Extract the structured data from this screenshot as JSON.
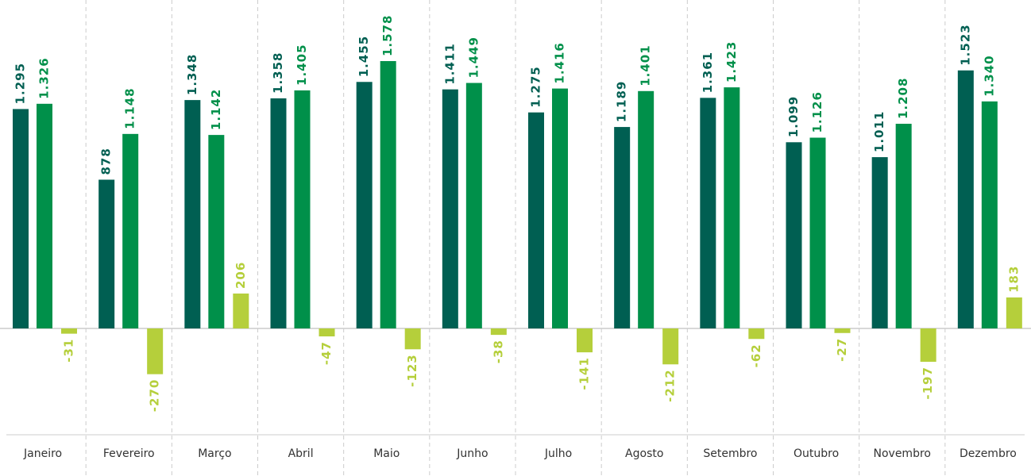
{
  "chart_data": {
    "type": "bar",
    "categories": [
      "Janeiro",
      "Fevereiro",
      "Março",
      "Abril",
      "Maio",
      "Junho",
      "Julho",
      "Agosto",
      "Setembro",
      "Outubro",
      "Novembro",
      "Dezembro"
    ],
    "series": [
      {
        "color": "#005f52",
        "values": [
          1295,
          878,
          1348,
          1358,
          1455,
          1411,
          1275,
          1189,
          1361,
          1099,
          1011,
          1523
        ],
        "value_labels": [
          "1.295",
          "878",
          "1.348",
          "1.358",
          "1.455",
          "1.411",
          "1.275",
          "1.189",
          "1.361",
          "1.099",
          "1.011",
          "1.523"
        ]
      },
      {
        "color": "#00904a",
        "values": [
          1326,
          1148,
          1142,
          1405,
          1578,
          1449,
          1416,
          1401,
          1423,
          1126,
          1208,
          1340
        ],
        "value_labels": [
          "1.326",
          "1.148",
          "1.142",
          "1.405",
          "1.578",
          "1.449",
          "1.416",
          "1.401",
          "1.423",
          "1.126",
          "1.208",
          "1.340"
        ]
      },
      {
        "color": "#b5cf3b",
        "values": [
          -31,
          -270,
          206,
          -47,
          -123,
          -38,
          -141,
          -212,
          -62,
          -27,
          -197,
          183
        ],
        "value_labels": [
          "-31",
          "-270",
          "206",
          "-47",
          "-123",
          "-38",
          "-141",
          "-212",
          "-62",
          "-27",
          "-197",
          "183"
        ]
      }
    ]
  }
}
